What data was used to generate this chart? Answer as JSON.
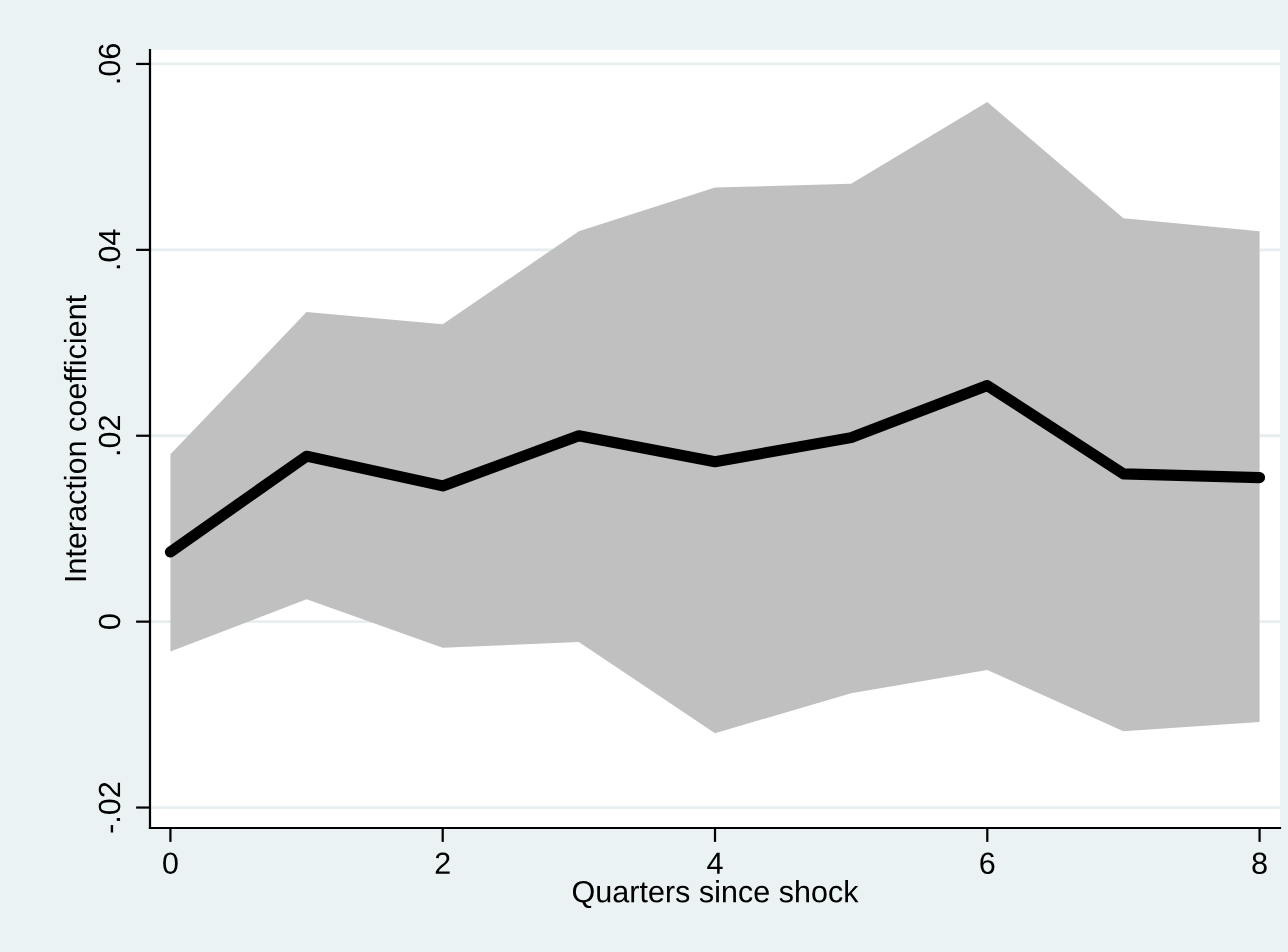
{
  "chart_data": {
    "type": "line",
    "xlabel": "Quarters since shock",
    "ylabel": "Interaction coefficient",
    "x": [
      0,
      1,
      2,
      3,
      4,
      5,
      6,
      7,
      8
    ],
    "series": [
      {
        "color": "#000000",
        "values": [
          0.0075,
          0.0178,
          0.0146,
          0.02,
          0.0172,
          0.0198,
          0.0254,
          0.0159,
          0.0155
        ],
        "lower": [
          -0.0032,
          0.0024,
          -0.0028,
          -0.0022,
          -0.012,
          -0.0077,
          -0.0052,
          -0.0118,
          -0.0108
        ],
        "upper": [
          0.018,
          0.0333,
          0.032,
          0.042,
          0.0467,
          0.0471,
          0.0559,
          0.0434,
          0.042
        ]
      }
    ],
    "xlim": [
      -0.15,
      8.15
    ],
    "ylim": [
      -0.0222,
      0.0615
    ],
    "xticks": [
      0,
      2,
      4,
      6,
      8
    ],
    "yticks": [
      {
        "value": -0.02,
        "label": "-.02"
      },
      0,
      {
        "value": 0.02,
        "label": ".02"
      },
      {
        "value": 0.04,
        "label": ".04"
      },
      {
        "value": 0.06,
        "label": ".06"
      }
    ],
    "grid": "y",
    "line_style": "solid",
    "marker": "none"
  }
}
